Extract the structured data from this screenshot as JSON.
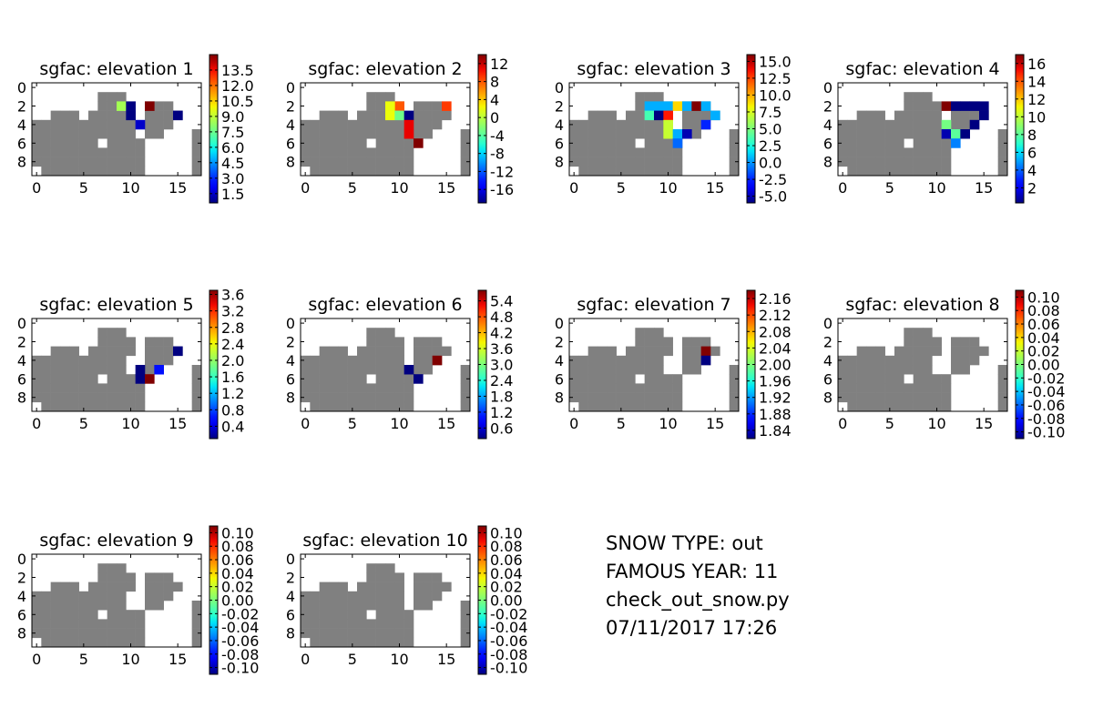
{
  "colormap": "jet",
  "land_color": "#808080",
  "background_color": "#ffffff",
  "info": {
    "snow_type": "SNOW TYPE: out",
    "famous_year": "FAMOUS YEAR: 11",
    "script": "check_out_snow.py",
    "timestamp": "07/11/2017 17:26"
  },
  "chart_data": [
    {
      "type": "heatmap",
      "title": "sgfac: elevation 1",
      "x_ticks": [
        "0",
        "5",
        "10",
        "15"
      ],
      "y_ticks": [
        "0",
        "2",
        "4",
        "6",
        "8"
      ],
      "cbar_min": 0.6,
      "cbar_max": 15.0,
      "cbar_ticks": [
        "1.5",
        "3.0",
        "4.5",
        "6.0",
        "7.5",
        "9.0",
        "10.5",
        "12.0",
        "13.5"
      ],
      "cbar_tick_values": [
        1.5,
        3.0,
        4.5,
        6.0,
        7.5,
        9.0,
        10.5,
        12.0,
        13.5
      ],
      "holes": [
        [
          10,
          2
        ],
        [
          16,
          5
        ],
        [
          16,
          6
        ]
      ],
      "cells": [
        [
          9,
          2,
          8.5
        ],
        [
          12,
          2,
          15.0
        ],
        [
          10,
          2,
          0.6
        ],
        [
          10,
          3,
          0.6
        ],
        [
          15,
          3,
          0.6
        ],
        [
          11,
          4,
          1.5
        ]
      ]
    },
    {
      "type": "heatmap",
      "title": "sgfac: elevation 2",
      "x_ticks": [
        "0",
        "5",
        "10",
        "15"
      ],
      "y_ticks": [
        "0",
        "2",
        "4",
        "6",
        "8"
      ],
      "cbar_min": -19.0,
      "cbar_max": 14.0,
      "cbar_ticks": [
        "-16",
        "-12",
        "-8",
        "-4",
        "0",
        "4",
        "8",
        "12"
      ],
      "cbar_tick_values": [
        -16,
        -12,
        -8,
        -4,
        0,
        4,
        8,
        12
      ],
      "holes": [
        [
          16,
          5
        ],
        [
          16,
          6
        ]
      ],
      "cells": [
        [
          10,
          2,
          8.0
        ],
        [
          9,
          2,
          2.0
        ],
        [
          9,
          3,
          2.0
        ],
        [
          15,
          2,
          9.0
        ],
        [
          10,
          3,
          -3.0
        ],
        [
          11,
          3,
          -19.0
        ],
        [
          11,
          4,
          11.0
        ],
        [
          11,
          5,
          11.0
        ],
        [
          12,
          6,
          14.0
        ]
      ]
    },
    {
      "type": "heatmap",
      "title": "sgfac: elevation 3",
      "x_ticks": [
        "0",
        "5",
        "10",
        "15"
      ],
      "y_ticks": [
        "0",
        "2",
        "4",
        "6",
        "8"
      ],
      "cbar_min": -6.0,
      "cbar_max": 16.0,
      "cbar_ticks": [
        "-5.0",
        "-2.5",
        "0.0",
        "2.5",
        "5.0",
        "7.5",
        "10.0",
        "12.5",
        "15.0"
      ],
      "cbar_tick_values": [
        -5.0,
        -2.5,
        0.0,
        2.5,
        5.0,
        7.5,
        10.0,
        12.5,
        15.0
      ],
      "holes": [
        [
          16,
          5
        ],
        [
          16,
          6
        ]
      ],
      "cells": [
        [
          8,
          2,
          0.5
        ],
        [
          9,
          2,
          0.5
        ],
        [
          10,
          2,
          0.5
        ],
        [
          11,
          2,
          9.0
        ],
        [
          12,
          2,
          0.5
        ],
        [
          13,
          2,
          16.0
        ],
        [
          14,
          2,
          0.5
        ],
        [
          8,
          3,
          3.5
        ],
        [
          9,
          3,
          -6.0
        ],
        [
          10,
          3,
          13.5
        ],
        [
          15,
          3,
          0.5
        ],
        [
          14,
          4,
          -2.5
        ],
        [
          10,
          4,
          7.0
        ],
        [
          10,
          5,
          7.0
        ],
        [
          11,
          5,
          0.5
        ],
        [
          12,
          5,
          -5.0
        ],
        [
          11,
          6,
          -1.0
        ]
      ]
    },
    {
      "type": "heatmap",
      "title": "sgfac: elevation 4",
      "x_ticks": [
        "0",
        "5",
        "10",
        "15"
      ],
      "y_ticks": [
        "0",
        "2",
        "4",
        "6",
        "8"
      ],
      "cbar_min": 0.3,
      "cbar_max": 17.0,
      "cbar_ticks": [
        "2",
        "4",
        "6",
        "8",
        "10",
        "12",
        "14",
        "16"
      ],
      "cbar_tick_values": [
        2,
        4,
        6,
        8,
        10,
        12,
        14,
        16
      ],
      "holes": [
        [
          16,
          5
        ],
        [
          16,
          6
        ]
      ],
      "cells": [
        [
          11,
          2,
          17.0
        ],
        [
          12,
          2,
          0.3
        ],
        [
          13,
          2,
          0.3
        ],
        [
          14,
          2,
          0.3
        ],
        [
          15,
          2,
          0.3
        ],
        [
          15,
          3,
          0.3
        ],
        [
          11,
          4,
          8.5
        ],
        [
          14,
          4,
          0.3
        ],
        [
          11,
          5,
          1.0
        ],
        [
          12,
          5,
          8.0
        ],
        [
          13,
          5,
          0.3
        ],
        [
          12,
          6,
          4.5
        ]
      ]
    },
    {
      "type": "heatmap",
      "title": "sgfac: elevation 5",
      "x_ticks": [
        "0",
        "5",
        "10",
        "15"
      ],
      "y_ticks": [
        "0",
        "2",
        "4",
        "6",
        "8"
      ],
      "cbar_min": 0.1,
      "cbar_max": 3.7,
      "cbar_ticks": [
        "0.4",
        "0.8",
        "1.2",
        "1.6",
        "2.0",
        "2.4",
        "2.8",
        "3.2",
        "3.6"
      ],
      "cbar_tick_values": [
        0.4,
        0.8,
        1.2,
        1.6,
        2.0,
        2.4,
        2.8,
        3.2,
        3.6
      ],
      "holes": [
        [
          10,
          4
        ],
        [
          10,
          5
        ]
      ],
      "cells": [
        [
          15,
          3,
          0.1
        ],
        [
          13,
          5,
          0.6
        ],
        [
          11,
          5,
          0.1
        ],
        [
          11,
          6,
          0.1
        ],
        [
          12,
          6,
          3.7
        ]
      ]
    },
    {
      "type": "heatmap",
      "title": "sgfac: elevation 6",
      "x_ticks": [
        "0",
        "5",
        "10",
        "15"
      ],
      "y_ticks": [
        "0",
        "2",
        "4",
        "6",
        "8"
      ],
      "cbar_min": 0.2,
      "cbar_max": 5.8,
      "cbar_ticks": [
        "0.6",
        "1.2",
        "1.8",
        "2.4",
        "3.0",
        "3.6",
        "4.2",
        "4.8",
        "5.4"
      ],
      "cbar_tick_values": [
        0.6,
        1.2,
        1.8,
        2.4,
        3.0,
        3.6,
        4.2,
        4.8,
        5.4
      ],
      "holes": [],
      "cells": [
        [
          14,
          4,
          5.8
        ],
        [
          11,
          5,
          0.2
        ],
        [
          12,
          6,
          0.2
        ]
      ]
    },
    {
      "type": "heatmap",
      "title": "sgfac: elevation 7",
      "x_ticks": [
        "0",
        "5",
        "10",
        "15"
      ],
      "y_ticks": [
        "0",
        "2",
        "4",
        "6",
        "8"
      ],
      "cbar_min": 1.82,
      "cbar_max": 2.18,
      "cbar_ticks": [
        "1.84",
        "1.88",
        "1.92",
        "1.96",
        "2.00",
        "2.04",
        "2.08",
        "2.12",
        "2.16"
      ],
      "cbar_tick_values": [
        1.84,
        1.88,
        1.92,
        1.96,
        2.0,
        2.04,
        2.08,
        2.12,
        2.16
      ],
      "holes": [
        [
          10,
          4
        ],
        [
          10,
          5
        ]
      ],
      "cells": [
        [
          14,
          3,
          2.18
        ],
        [
          14,
          4,
          1.82
        ]
      ]
    },
    {
      "type": "heatmap",
      "title": "sgfac: elevation 8",
      "x_ticks": [
        "0",
        "5",
        "10",
        "15"
      ],
      "y_ticks": [
        "0",
        "2",
        "4",
        "6",
        "8"
      ],
      "cbar_min": -0.11,
      "cbar_max": 0.11,
      "cbar_ticks": [
        "-0.10",
        "-0.08",
        "-0.06",
        "-0.04",
        "-0.02",
        "0.00",
        "0.02",
        "0.04",
        "0.06",
        "0.08",
        "0.10"
      ],
      "cbar_tick_values": [
        -0.1,
        -0.08,
        -0.06,
        -0.04,
        -0.02,
        0.0,
        0.02,
        0.04,
        0.06,
        0.08,
        0.1
      ],
      "holes": [
        [
          10,
          4
        ],
        [
          10,
          5
        ]
      ],
      "cells": []
    },
    {
      "type": "heatmap",
      "title": "sgfac: elevation 9",
      "x_ticks": [
        "0",
        "5",
        "10",
        "15"
      ],
      "y_ticks": [
        "0",
        "2",
        "4",
        "6",
        "8"
      ],
      "cbar_min": -0.11,
      "cbar_max": 0.11,
      "cbar_ticks": [
        "-0.10",
        "-0.08",
        "-0.06",
        "-0.04",
        "-0.02",
        "0.00",
        "0.02",
        "0.04",
        "0.06",
        "0.08",
        "0.10"
      ],
      "cbar_tick_values": [
        -0.1,
        -0.08,
        -0.06,
        -0.04,
        -0.02,
        0.0,
        0.02,
        0.04,
        0.06,
        0.08,
        0.1
      ],
      "holes": [
        [
          10,
          4
        ],
        [
          10,
          5
        ]
      ],
      "cells": []
    },
    {
      "type": "heatmap",
      "title": "sgfac: elevation 10",
      "x_ticks": [
        "0",
        "5",
        "10",
        "15"
      ],
      "y_ticks": [
        "0",
        "2",
        "4",
        "6",
        "8"
      ],
      "cbar_min": -0.11,
      "cbar_max": 0.11,
      "cbar_ticks": [
        "-0.10",
        "-0.08",
        "-0.06",
        "-0.04",
        "-0.02",
        "0.00",
        "0.02",
        "0.04",
        "0.06",
        "0.08",
        "0.10"
      ],
      "cbar_tick_values": [
        -0.1,
        -0.08,
        -0.06,
        -0.04,
        -0.02,
        0.0,
        0.02,
        0.04,
        0.06,
        0.08,
        0.1
      ],
      "holes": [],
      "cells": []
    }
  ]
}
